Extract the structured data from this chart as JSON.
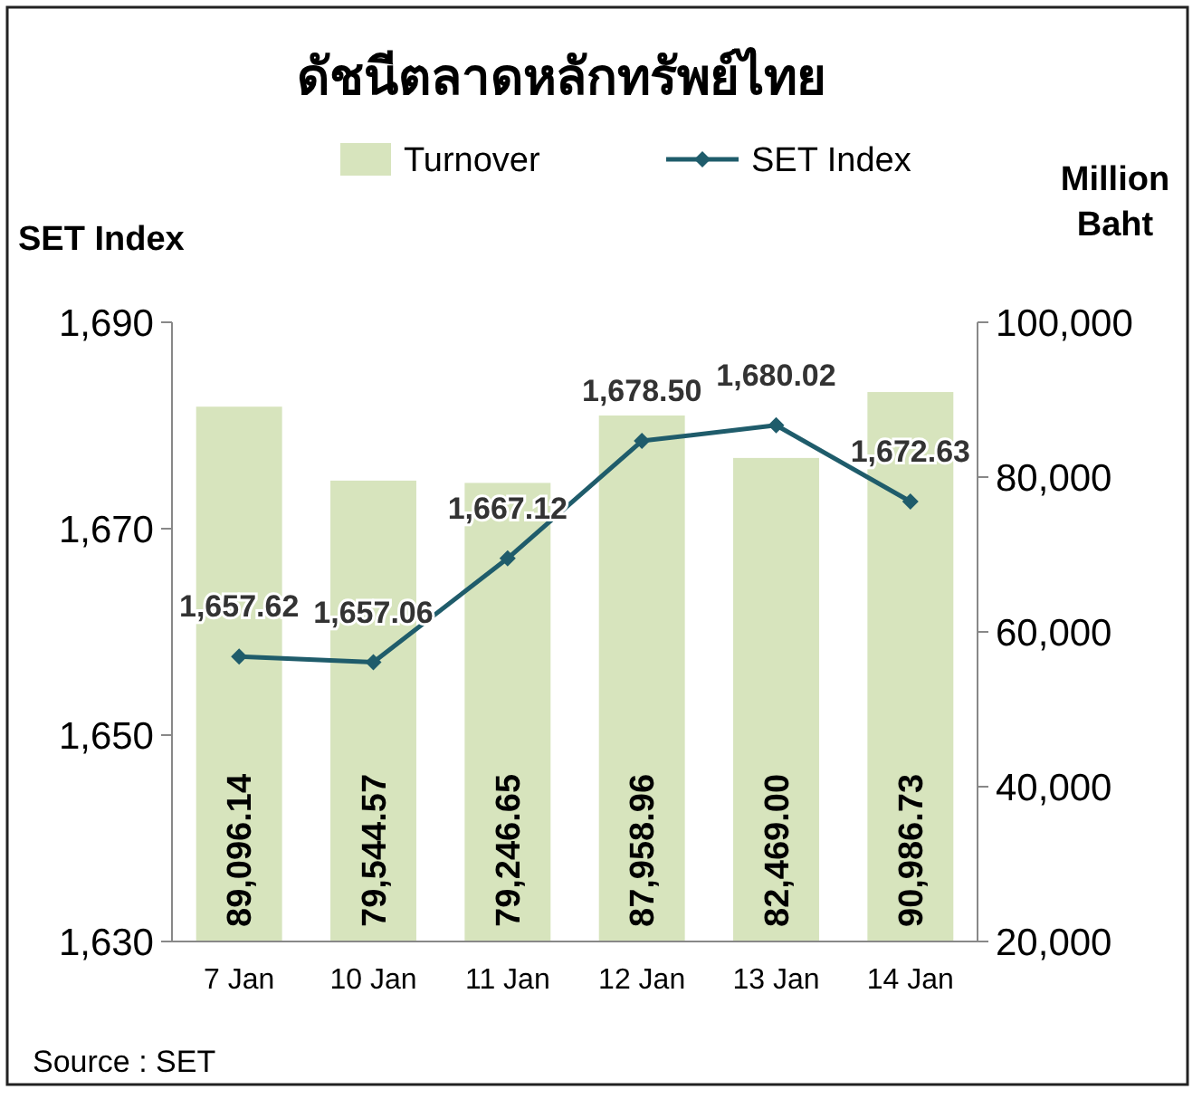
{
  "chart_data": {
    "type": "bar",
    "title": "ดัชนีตลาดหลักทรัพย์ไทย",
    "ylabel": "SET Index",
    "y2label": "Million Baht",
    "categories": [
      "7 Jan",
      "10 Jan",
      "11 Jan",
      "12 Jan",
      "13 Jan",
      "14 Jan"
    ],
    "series": [
      {
        "name": "Turnover",
        "axis": "y2",
        "color": "#d7e4bd",
        "values": [
          89096.14,
          79544.57,
          79246.65,
          87958.96,
          82469.0,
          90986.73
        ],
        "value_labels": [
          "89,096.14",
          "79,544.57",
          "79,246.65",
          "87,958.96",
          "82,469.00",
          "90,986.73"
        ]
      },
      {
        "name": "SET Index",
        "type": "line",
        "color": "#1f5c6b",
        "values": [
          1657.62,
          1657.06,
          1667.12,
          1678.5,
          1680.02,
          1672.63
        ],
        "value_labels": [
          "1,657.62",
          "1,657.06",
          "1,667.12",
          "1,678.50",
          "1,680.02",
          "1,672.63"
        ]
      }
    ],
    "ylim": [
      1630,
      1690
    ],
    "yticks": [
      {
        "value": 1630,
        "label": "1,630"
      },
      {
        "value": 1650,
        "label": "1,650"
      },
      {
        "value": 1670,
        "label": "1,670"
      },
      {
        "value": 1690,
        "label": "1,690"
      }
    ],
    "y2lim": [
      20000,
      100000
    ],
    "y2ticks": [
      {
        "value": 20000,
        "label": "20,000"
      },
      {
        "value": 40000,
        "label": "40,000"
      },
      {
        "value": 60000,
        "label": "60,000"
      },
      {
        "value": 80000,
        "label": "80,000"
      },
      {
        "value": 100000,
        "label": "100,000"
      }
    ],
    "legend": "top",
    "marker": "diamond",
    "line_style": "solid",
    "annotations": [
      "Source : SET"
    ]
  }
}
